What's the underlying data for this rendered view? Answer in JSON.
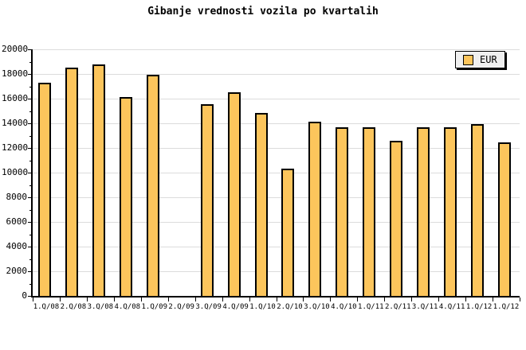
{
  "chart_data": {
    "type": "bar",
    "title": "Gibanje vrednosti vozila po kvartalih",
    "categories": [
      "1.Q/08",
      "2.Q/08",
      "3.Q/08",
      "4.Q/08",
      "1.Q/09",
      "2.Q/09",
      "3.Q/09",
      "4.Q/09",
      "1.Q/10",
      "2.Q/10",
      "3.Q/10",
      "4.Q/10",
      "1.Q/11",
      "2.Q/11",
      "3.Q/11",
      "4.Q/11",
      "1.Q/12",
      "1.Q/12"
    ],
    "series": [
      {
        "name": "EUR",
        "values": [
          17300,
          18500,
          18800,
          16100,
          17950,
          null,
          15550,
          16500,
          14850,
          10300,
          14150,
          13650,
          13700,
          12600,
          13650,
          13700,
          13950,
          12450
        ]
      }
    ],
    "xlabel": "",
    "ylabel": "",
    "ylim": [
      0,
      20000
    ],
    "ytick_step": 2000,
    "ytick_minor_step": 1000,
    "grid": true,
    "legend": {
      "position": "top-right",
      "entries": [
        "EUR"
      ]
    }
  },
  "colors": {
    "background": "#ffffff",
    "text": "#000000",
    "axis": "#000000",
    "grid": "#dcdcdc",
    "bar_fill": "#fcc55c",
    "bar_border": "#000000",
    "legend_bg": "#efefef"
  }
}
